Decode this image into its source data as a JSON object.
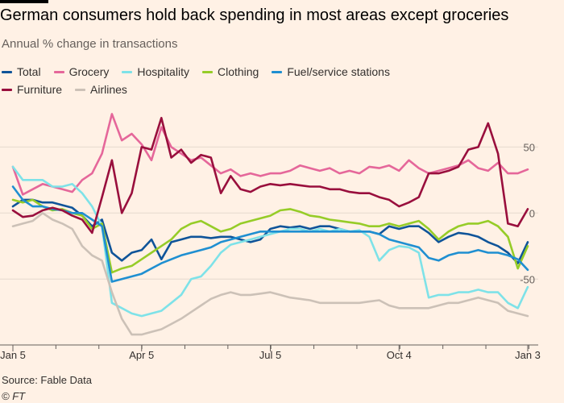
{
  "title": "German consumers hold back spending in most areas except groceries",
  "subtitle": "Annual % change in transactions",
  "source": "Source: Fable Data",
  "credit": "© FT",
  "chart_data": {
    "type": "line",
    "x": [
      0,
      7,
      14,
      21,
      28,
      35,
      42,
      49,
      56,
      63,
      70,
      77,
      84,
      91,
      98,
      105,
      112,
      119,
      126,
      133,
      140,
      147,
      154,
      161,
      168,
      175,
      182,
      189,
      196,
      203,
      210,
      217,
      224,
      231,
      238,
      245,
      252,
      259,
      266,
      273,
      280,
      287,
      294,
      301,
      308,
      315,
      322,
      329,
      336,
      343,
      350,
      357,
      364
    ],
    "x_ticks": [
      {
        "x": 0,
        "label": "Jan 5"
      },
      {
        "x": 91,
        "label": "Apr 5"
      },
      {
        "x": 182,
        "label": "Jul 5"
      },
      {
        "x": 273,
        "label": "Oct 4"
      },
      {
        "x": 364,
        "label": "Jan 3"
      }
    ],
    "y_ticks": [
      50,
      0,
      -50
    ],
    "ylim": [
      -95,
      85
    ],
    "grid": true,
    "legend": "top",
    "series": [
      {
        "name": "Total",
        "color": "#0f5499",
        "values": [
          5,
          10,
          10,
          8,
          8,
          6,
          4,
          -2,
          -10,
          -5,
          -30,
          -36,
          -30,
          -28,
          -20,
          -35,
          -22,
          -20,
          -18,
          -18,
          -19,
          -18,
          -18,
          -20,
          -22,
          -20,
          -12,
          -10,
          -11,
          -10,
          -12,
          -10,
          -10,
          -12,
          -14,
          -14,
          -14,
          -16,
          -10,
          -12,
          -10,
          -10,
          -15,
          -22,
          -18,
          -15,
          -16,
          -18,
          -22,
          -25,
          -30,
          -38,
          -22
        ]
      },
      {
        "name": "Grocery",
        "color": "#e5679a",
        "values": [
          35,
          14,
          18,
          22,
          20,
          18,
          16,
          25,
          30,
          45,
          75,
          55,
          60,
          52,
          40,
          65,
          50,
          45,
          40,
          42,
          36,
          30,
          33,
          28,
          30,
          28,
          30,
          30,
          32,
          36,
          34,
          32,
          34,
          30,
          32,
          30,
          35,
          34,
          36,
          32,
          40,
          34,
          30,
          32,
          34,
          36,
          40,
          34,
          32,
          38,
          30,
          30,
          33
        ]
      },
      {
        "name": "Hospitality",
        "color": "#7ee2e8",
        "values": [
          35,
          25,
          25,
          25,
          20,
          20,
          22,
          15,
          5,
          -10,
          -68,
          -72,
          -76,
          -78,
          -76,
          -74,
          -68,
          -62,
          -50,
          -48,
          -40,
          -30,
          -24,
          -22,
          -20,
          -18,
          -16,
          -14,
          -12,
          -12,
          -14,
          -12,
          -14,
          -12,
          -14,
          -13,
          -18,
          -36,
          -28,
          -25,
          -26,
          -30,
          -64,
          -62,
          -62,
          -60,
          -60,
          -58,
          -60,
          -60,
          -68,
          -72,
          -56
        ]
      },
      {
        "name": "Clothing",
        "color": "#96cc28",
        "values": [
          10,
          8,
          10,
          5,
          2,
          3,
          0,
          -2,
          -12,
          -8,
          -45,
          -42,
          -40,
          -35,
          -30,
          -25,
          -20,
          -12,
          -8,
          -6,
          -10,
          -14,
          -12,
          -8,
          -6,
          -4,
          -2,
          2,
          3,
          1,
          -2,
          -3,
          -5,
          -6,
          -7,
          -8,
          -10,
          -10,
          -8,
          -10,
          -8,
          -6,
          -12,
          -20,
          -14,
          -10,
          -8,
          -8,
          -6,
          -10,
          -18,
          -42,
          -25
        ]
      },
      {
        "name": "Fuel/service stations",
        "color": "#1f8fd1",
        "values": [
          20,
          10,
          5,
          5,
          3,
          2,
          0,
          0,
          -5,
          -10,
          -52,
          -50,
          -48,
          -46,
          -42,
          -38,
          -35,
          -32,
          -30,
          -28,
          -26,
          -22,
          -20,
          -18,
          -16,
          -14,
          -14,
          -14,
          -14,
          -14,
          -14,
          -14,
          -14,
          -14,
          -14,
          -14,
          -14,
          -16,
          -20,
          -22,
          -24,
          -26,
          -34,
          -36,
          -32,
          -30,
          -30,
          -28,
          -30,
          -30,
          -32,
          -35,
          -43
        ]
      },
      {
        "name": "Furniture",
        "color": "#990f3d",
        "values": [
          2,
          -3,
          -2,
          2,
          4,
          2,
          -2,
          -5,
          -15,
          12,
          40,
          0,
          15,
          50,
          48,
          72,
          42,
          48,
          38,
          44,
          42,
          15,
          28,
          18,
          16,
          20,
          22,
          21,
          22,
          21,
          20,
          20,
          18,
          18,
          16,
          15,
          15,
          12,
          10,
          5,
          8,
          12,
          30,
          30,
          32,
          35,
          48,
          50,
          68,
          45,
          -8,
          -10,
          3
        ]
      },
      {
        "name": "Airlines",
        "color": "#ccc1b7",
        "values": [
          -10,
          -8,
          -6,
          0,
          -5,
          -8,
          -12,
          -25,
          -32,
          -36,
          -60,
          -80,
          -92,
          -92,
          -90,
          -88,
          -84,
          -80,
          -75,
          -70,
          -65,
          -62,
          -60,
          -62,
          -62,
          -61,
          -60,
          -62,
          -64,
          -65,
          -66,
          -68,
          -68,
          -68,
          -68,
          -68,
          -67,
          -66,
          -70,
          -72,
          -72,
          -72,
          -72,
          -70,
          -68,
          -68,
          -66,
          -64,
          -66,
          -68,
          -74,
          -76,
          -78
        ]
      }
    ]
  }
}
